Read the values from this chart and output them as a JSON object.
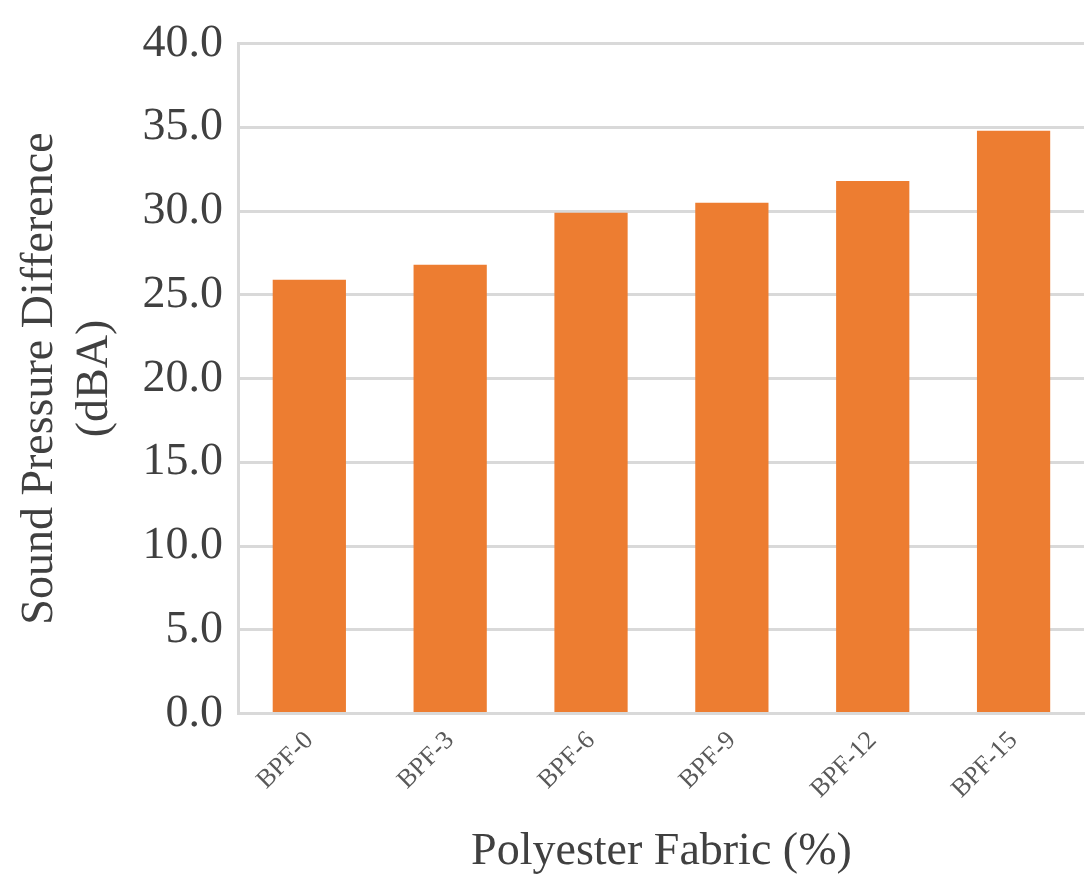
{
  "chart_data": {
    "type": "bar",
    "categories": [
      "BPF-0",
      "BPF-3",
      "BPF-6",
      "BPF-9",
      "BPF-12",
      "BPF-15"
    ],
    "values": [
      25.9,
      26.8,
      29.9,
      30.5,
      31.8,
      34.8
    ],
    "color": "#ed7d31",
    "xlabel": "Polyester Fabric (%)",
    "ylabel": "Sound Pressure Difference (dBA)",
    "ylim": [
      0,
      40
    ],
    "yticks": [
      {
        "value": 0,
        "label": "0.0"
      },
      {
        "value": 5,
        "label": "5.0"
      },
      {
        "value": 10,
        "label": "10.0"
      },
      {
        "value": 15,
        "label": "15.0"
      },
      {
        "value": 20,
        "label": "20.0"
      },
      {
        "value": 25,
        "label": "25.0"
      },
      {
        "value": 30,
        "label": "30.0"
      },
      {
        "value": 35,
        "label": "35.0"
      },
      {
        "value": 40,
        "label": "40.0"
      }
    ],
    "grid": "y",
    "legend": false
  }
}
